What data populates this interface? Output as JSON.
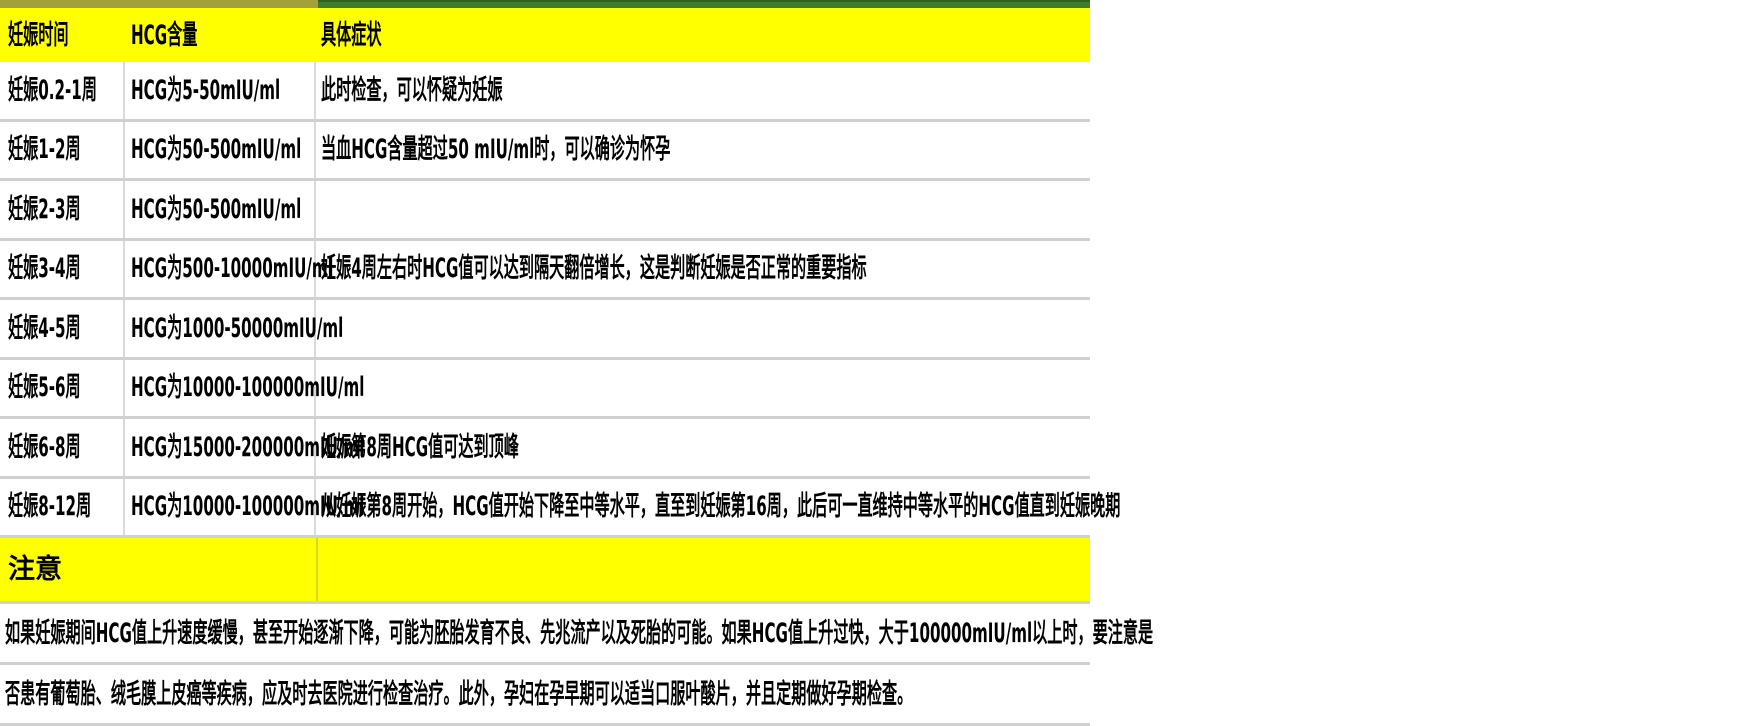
{
  "colors": {
    "header_bg": "#ffff00",
    "notice_bg": "#ffff00",
    "top_strip_left": "#a2a238",
    "top_strip_right": "#3f7d2b",
    "grid_line": "#d0d0d0",
    "text": "#000000",
    "row_bg": "#ffffff"
  },
  "table": {
    "columns": [
      "妊娠时间",
      "HCG含量",
      "具体症状"
    ],
    "rows": [
      {
        "time": "妊娠0.2-1周",
        "hcg": "HCG为5-50mIU/ml",
        "symptom": "此时检查，可以怀疑为妊娠"
      },
      {
        "time": "妊娠1-2周",
        "hcg": "HCG为50-500mIU/ml",
        "symptom": "当血HCG含量超过50 mIU/ml时，可以确诊为怀孕"
      },
      {
        "time": "妊娠2-3周",
        "hcg": "HCG为50-500mIU/ml",
        "symptom": ""
      },
      {
        "time": "妊娠3-4周",
        "hcg": "HCG为500-10000mIU/ml",
        "symptom": "妊娠4周左右时HCG值可以达到隔天翻倍增长，这是判断妊娠是否正常的重要指标"
      },
      {
        "time": "妊娠4-5周",
        "hcg": "HCG为1000-50000mIU/ml",
        "symptom": ""
      },
      {
        "time": "妊娠5-6周",
        "hcg": "HCG为10000-100000mIU/ml",
        "symptom": ""
      },
      {
        "time": "妊娠6-8周",
        "hcg": "HCG为15000-200000mIU/ml",
        "symptom": "妊娠第8周HCG值可达到顶峰"
      },
      {
        "time": "妊娠8-12周",
        "hcg": "HCG为10000-100000mIU/ml",
        "symptom": "从妊娠第8周开始，HCG值开始下降至中等水平，直至到妊娠第16周，此后可一直维持中等水平的HCG值直到妊娠晚期"
      }
    ]
  },
  "notice": {
    "label": "注意"
  },
  "note": {
    "lines": [
      "如果妊娠期间HCG值上升速度缓慢，甚至开始逐渐下降，可能为胚胎发育不良、先兆流产以及死胎的可能。如果HCG值上升过快，大于100000mIU/ml以上时，要注意是",
      "否患有葡萄胎、绒毛膜上皮癌等疾病，应及时去医院进行检查治疗。此外，孕妇在孕早期可以适当口服叶酸片，并且定期做好孕期检查。"
    ]
  },
  "chart_data": {
    "type": "table",
    "title": "",
    "columns": [
      "妊娠时间",
      "HCG含量",
      "具体症状"
    ],
    "rows": [
      [
        "妊娠0.2-1周",
        "HCG为5-50mIU/ml",
        "此时检查，可以怀疑为妊娠"
      ],
      [
        "妊娠1-2周",
        "HCG为50-500mIU/ml",
        "当血HCG含量超过50 mIU/ml时，可以确诊为怀孕"
      ],
      [
        "妊娠2-3周",
        "HCG为50-500mIU/ml",
        ""
      ],
      [
        "妊娠3-4周",
        "HCG为500-10000mIU/ml",
        "妊娠4周左右时HCG值可以达到隔天翻倍增长，这是判断妊娠是否正常的重要指标"
      ],
      [
        "妊娠4-5周",
        "HCG为1000-50000mIU/ml",
        ""
      ],
      [
        "妊娠5-6周",
        "HCG为10000-100000mIU/ml",
        ""
      ],
      [
        "妊娠6-8周",
        "HCG为15000-200000mIU/ml",
        "妊娠第8周HCG值可达到顶峰"
      ],
      [
        "妊娠8-12周",
        "HCG为10000-100000mIU/ml",
        "从妊娠第8周开始，HCG值开始下降至中等水平，直至到妊娠第16周，此后可一直维持中等水平的HCG值直到妊娠晚期"
      ]
    ],
    "notice": "注意",
    "note": "如果妊娠期间HCG值上升速度缓慢，甚至开始逐渐下降，可能为胚胎发育不良、先兆流产以及死胎的可能。如果HCG值上升过快，大于100000mIU/ml以上时，要注意是否患有葡萄胎、绒毛膜上皮癌等疾病，应及时去医院进行检查治疗。此外，孕妇在孕早期可以适当口服叶酸片，并且定期做好孕期检查。"
  }
}
